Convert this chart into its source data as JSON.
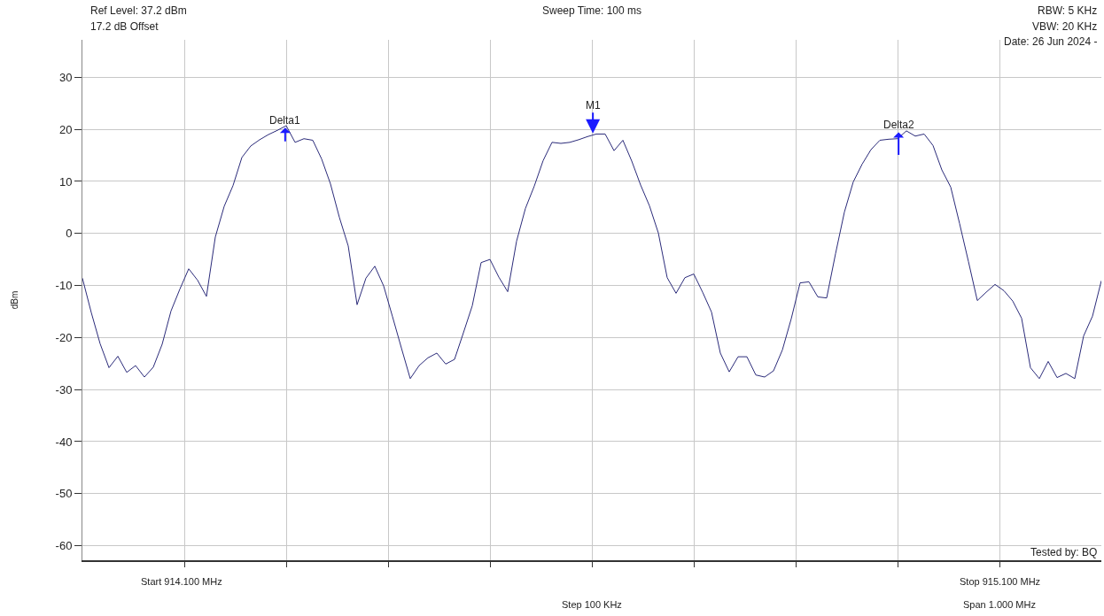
{
  "chart_data": {
    "type": "line",
    "ylabel": "dBm",
    "annotations": [
      "Ref Level: 37.2 dBm",
      "17.2 dB Offset",
      "Sweep Time: 100 ms",
      "RBW: 5 KHz",
      "VBW: 20 KHz",
      "Date: 26 Jun 2024 -",
      "Tested by: BQ",
      "Start 914.100 MHz",
      "Step 100 KHz",
      "Stop 915.100 MHz",
      "Span 1.000 MHz",
      "Delta1",
      "M1",
      "Delta2"
    ],
    "categories": [
      null,
      null,
      null,
      null,
      null,
      null,
      null,
      null,
      null,
      null,
      null,
      null,
      null,
      null,
      null,
      null,
      null,
      null,
      null,
      null,
      null,
      null,
      null,
      null,
      null,
      null,
      null,
      null,
      null,
      null,
      null,
      null,
      null,
      null,
      null,
      null,
      null,
      null,
      null,
      null,
      null,
      null,
      null,
      null,
      null,
      null,
      null,
      null,
      null,
      null,
      null,
      null,
      null,
      null,
      null,
      null,
      null,
      null,
      null,
      null,
      null,
      null,
      null,
      null,
      null,
      null,
      null,
      null,
      null,
      null,
      null,
      null,
      null,
      null,
      null,
      null,
      null,
      null,
      null,
      null,
      null,
      null,
      null,
      null,
      null,
      null,
      null,
      null,
      null,
      null,
      null,
      null,
      null,
      null,
      null,
      null,
      null,
      null,
      null,
      null,
      null,
      null,
      null,
      null,
      null,
      null,
      null,
      null,
      null,
      null,
      null,
      null,
      null,
      null,
      null,
      null
    ],
    "ylim": [
      -62.8,
      37.2
    ],
    "yticks": [
      -60,
      -50,
      -40,
      -30,
      -20,
      -10,
      0,
      10,
      20,
      30
    ],
    "grid": true,
    "marker": "none",
    "line_style": "solid",
    "series": [
      {
        "color": "#2b2b7a",
        "values": [
          -8.6,
          -15.2,
          -21.2,
          -25.8,
          -23.6,
          -26.7,
          -25.4,
          -27.6,
          -25.7,
          -21.3,
          -14.9,
          -10.7,
          -6.8,
          -9,
          -12.1,
          -0.7,
          5.2,
          9.2,
          14.6,
          16.8,
          18,
          19,
          19.8,
          20.7,
          17.5,
          18.2,
          17.9,
          14.3,
          9.5,
          3.1,
          -2.4,
          -13.7,
          -8.6,
          -6.3,
          -10.1,
          -16,
          -22,
          -27.9,
          -25.4,
          -23.9,
          -23,
          -25.1,
          -24.2,
          -19.1,
          -13.9,
          -5.6,
          -5,
          -8.4,
          -11.2,
          -1.5,
          4.8,
          9.1,
          14,
          17.5,
          17.3,
          17.5,
          18,
          18.6,
          19.1,
          19.1,
          15.9,
          17.9,
          13.9,
          9.3,
          5.3,
          0.1,
          -8.5,
          -11.5,
          -8.5,
          -7.8,
          -11.3,
          -15.1,
          -23,
          -26.6,
          -23.7,
          -23.7,
          -27.2,
          -27.6,
          -26.4,
          -22.4,
          -16.4,
          -9.5,
          -9.3,
          -12.2,
          -12.4,
          -3.9,
          4.1,
          9.9,
          13.3,
          16.1,
          17.9,
          18.1,
          18.2,
          19.7,
          18.7,
          19.1,
          16.9,
          12.2,
          8.9,
          1.9,
          -5.4,
          -12.9,
          -11.3,
          -9.8,
          -11,
          -13,
          -16.3,
          -25.8,
          -27.9,
          -24.6,
          -27.7,
          -26.9,
          -27.9,
          -19.7,
          -15.9,
          -9.1
        ]
      }
    ]
  }
}
